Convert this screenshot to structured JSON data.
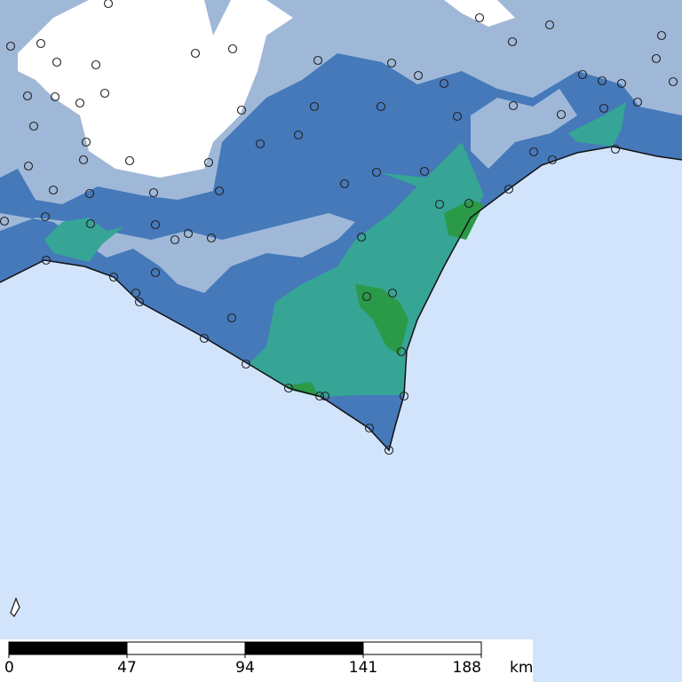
{
  "scale_bar": {
    "ticks": [
      0,
      47,
      94,
      141,
      188
    ],
    "unit": "km"
  }
}
